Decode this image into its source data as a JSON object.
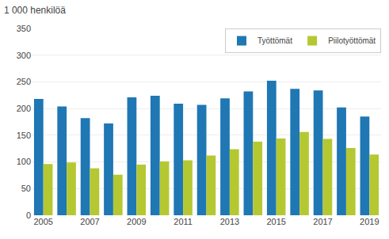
{
  "chart_data": {
    "type": "bar",
    "title": "1 000 henkilöä",
    "categories": [
      "2005",
      null,
      "2007",
      null,
      "2009",
      null,
      "2011",
      null,
      "2013",
      null,
      "2015",
      null,
      "2017",
      null,
      "2019"
    ],
    "series": [
      {
        "name": "Työttömät",
        "color": "#1f77b4",
        "values": [
          218,
          204,
          182,
          172,
          221,
          224,
          209,
          207,
          219,
          232,
          252,
          237,
          234,
          202,
          185
        ]
      },
      {
        "name": "Piilotyöttömät",
        "color": "#b5c832",
        "values": [
          96,
          99,
          88,
          76,
          95,
          101,
          103,
          112,
          124,
          138,
          144,
          156,
          143,
          126,
          114
        ]
      }
    ],
    "ylim": [
      0,
      350
    ],
    "yticks": [
      0,
      50,
      100,
      150,
      200,
      250,
      300,
      350
    ],
    "grid": true,
    "legend": "upper right"
  }
}
